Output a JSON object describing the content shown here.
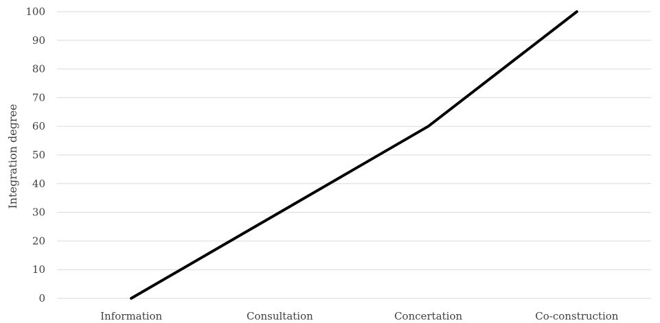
{
  "chart_data": {
    "type": "line",
    "title": "",
    "xlabel": "",
    "ylabel": "Integration degree",
    "categories": [
      "Information",
      "Consultation",
      "Concertation",
      "Co-construction"
    ],
    "series": [
      {
        "values": [
          0,
          30,
          60,
          100
        ],
        "color": "#000000"
      }
    ],
    "ylim": [
      0,
      100
    ],
    "yticks": [
      0,
      10,
      20,
      30,
      40,
      50,
      60,
      70,
      80,
      90,
      100
    ],
    "grid": true,
    "legend": "none",
    "colors": {
      "gridline": "#d9d9d9",
      "text": "#404040",
      "line": "#000000"
    }
  }
}
